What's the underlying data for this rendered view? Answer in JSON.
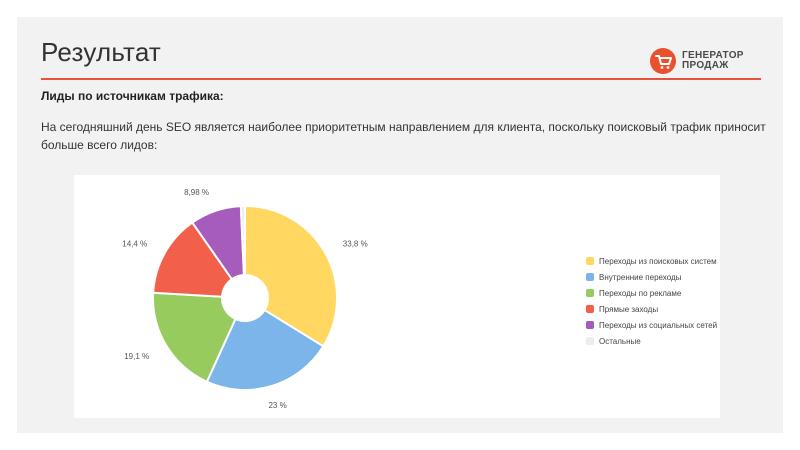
{
  "header": {
    "title": "Результат",
    "logo_line1": "ГЕНЕРАТОР",
    "logo_line2": "ПРОДАЖ"
  },
  "content": {
    "subtitle": "Лиды по источникам трафика:",
    "paragraph": "На сегодняшний день SEO является наиболее приоритетным направлением для клиента, поскольку поисковый трафик приносит больше всего лидов:"
  },
  "colors": {
    "accent": "#e6533b",
    "logo": "#e9502e"
  },
  "chart_data": {
    "type": "pie",
    "donut": true,
    "legend_position": "right",
    "slices": [
      {
        "name": "Переходы из поисковых систем",
        "value": 33.8,
        "label": "33,8 %",
        "color": "#ffd761"
      },
      {
        "name": "Внутренние переходы",
        "value": 23,
        "label": "23 %",
        "color": "#7cb5ea"
      },
      {
        "name": "Переходы по рекламе",
        "value": 19.1,
        "label": "19,1 %",
        "color": "#98cb5e"
      },
      {
        "name": "Прямые заходы",
        "value": 14.4,
        "label": "14,4 %",
        "color": "#f2604b"
      },
      {
        "name": "Переходы из социальных сетей",
        "value": 8.98,
        "label": "8,98 %",
        "color": "#a65cbc"
      },
      {
        "name": "Остальные",
        "value": 0.72,
        "label": "",
        "color": "#ececec"
      }
    ]
  }
}
